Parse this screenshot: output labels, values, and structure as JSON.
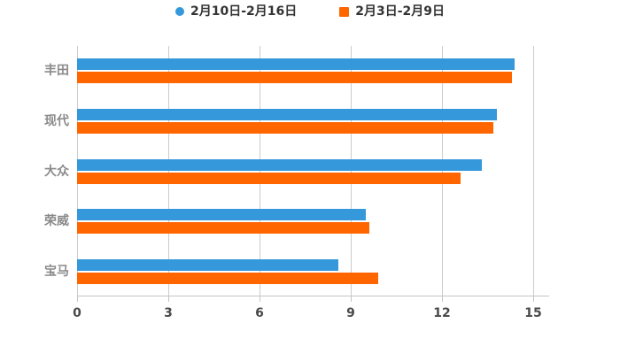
{
  "chart": {
    "legend": [
      {
        "label": "2月10日-2月16日",
        "color": "#3498db",
        "marker": "circle"
      },
      {
        "label": "2月3日-2月9日",
        "color": "#ff6600",
        "marker": "square"
      }
    ],
    "colors": {
      "gridline": "#cccccc",
      "axis_line": "#c4c4c4",
      "tick_label": "#4a4a4a",
      "category_label": "#8a8a8a",
      "legend_text": "#333333",
      "background": "#ffffff"
    }
  },
  "chart_data": {
    "type": "bar",
    "orientation": "horizontal",
    "title": "",
    "xlabel": "",
    "ylabel": "",
    "categories": [
      "丰田",
      "现代",
      "大众",
      "荣威",
      "宝马"
    ],
    "series": [
      {
        "name": "2月10日-2月16日",
        "color": "#3498db",
        "values": [
          14.4,
          13.8,
          13.3,
          9.5,
          8.6
        ]
      },
      {
        "name": "2月3日-2月9日",
        "color": "#ff6600",
        "values": [
          14.3,
          13.7,
          12.6,
          9.6,
          9.9
        ]
      }
    ],
    "xlim": [
      0,
      15
    ],
    "x_ticks": [
      0,
      3,
      6,
      9,
      12,
      15
    ],
    "grid": true,
    "legend_position": "top"
  }
}
